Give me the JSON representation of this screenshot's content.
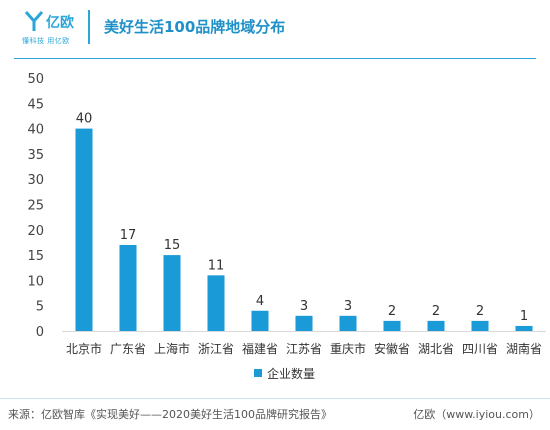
{
  "header": {
    "logo_name": "亿欧",
    "logo_sub": "懂科技 用亿欧",
    "title": "美好生活100品牌地域分布"
  },
  "colors": {
    "bar": "#1a9ad6",
    "accent": "#2ba6d8",
    "text": "#333333"
  },
  "chart_data": {
    "type": "bar",
    "title": "美好生活100品牌地域分布",
    "xlabel": "",
    "ylabel": "",
    "ylim": [
      0,
      50
    ],
    "yticks": [
      0,
      5,
      10,
      15,
      20,
      25,
      30,
      35,
      40,
      45,
      50
    ],
    "categories": [
      "北京市",
      "广东省",
      "上海市",
      "浙江省",
      "福建省",
      "江苏省",
      "重庆市",
      "安徽省",
      "湖北省",
      "四川省",
      "湖南省"
    ],
    "series": [
      {
        "name": "企业数量",
        "values": [
          40,
          17,
          15,
          11,
          4,
          3,
          3,
          2,
          2,
          2,
          1
        ]
      }
    ],
    "grid": false,
    "legend": "bottom-center"
  },
  "footer": {
    "source": "来源：亿欧智库《实现美好——2020美好生活100品牌研究报告》",
    "brand": "亿欧（www.iyiou.com）"
  }
}
